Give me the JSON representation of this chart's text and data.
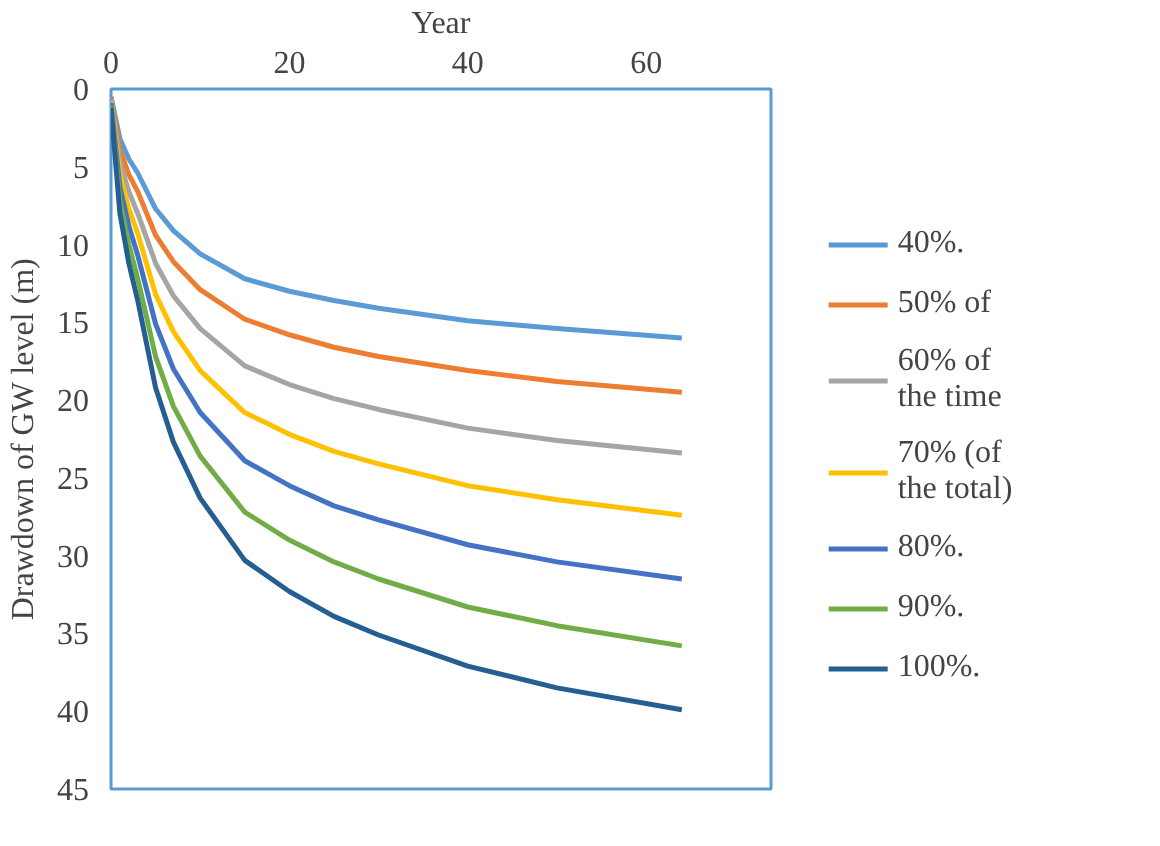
{
  "chart_data": {
    "type": "line",
    "xlabel": "Year",
    "ylabel": "Drawdown of GW level (m)",
    "x": [
      0,
      1,
      2,
      3,
      5,
      7,
      10,
      15,
      20,
      25,
      30,
      40,
      50,
      64
    ],
    "xlim": [
      0,
      74
    ],
    "xticks": [
      0,
      20,
      40,
      60
    ],
    "ylim": [
      45,
      0
    ],
    "yticks": [
      0,
      5,
      10,
      15,
      20,
      25,
      30,
      35,
      40,
      45
    ],
    "grid": false,
    "legend": "right",
    "marker": "none",
    "line_style": "solid",
    "series": [
      {
        "name": "40%.",
        "color": "#5b9bd5",
        "values": [
          0.5,
          3.2,
          4.5,
          5.4,
          7.7,
          9.1,
          10.6,
          12.2,
          13.0,
          13.6,
          14.1,
          14.9,
          15.4,
          16.0
        ]
      },
      {
        "name": "50% of",
        "color": "#ed7d31",
        "values": [
          0.6,
          3.9,
          5.5,
          6.6,
          9.4,
          11.1,
          12.9,
          14.8,
          15.8,
          16.6,
          17.2,
          18.1,
          18.8,
          19.5
        ]
      },
      {
        "name": "60% of\nthe time",
        "color": "#a5a5a5",
        "values": [
          0.7,
          4.7,
          6.6,
          8.0,
          11.2,
          13.3,
          15.4,
          17.8,
          19.0,
          19.9,
          20.6,
          21.8,
          22.6,
          23.4
        ]
      },
      {
        "name": "70% (of\nthe total)",
        "color": "#ffc000",
        "values": [
          0.8,
          5.5,
          7.7,
          9.3,
          13.2,
          15.6,
          18.1,
          20.8,
          22.2,
          23.3,
          24.1,
          25.5,
          26.4,
          27.4
        ]
      },
      {
        "name": "80%.",
        "color": "#4472c4",
        "values": [
          0.9,
          6.3,
          8.8,
          10.7,
          15.1,
          18.0,
          20.8,
          23.9,
          25.5,
          26.8,
          27.7,
          29.3,
          30.4,
          31.5
        ]
      },
      {
        "name": "90%.",
        "color": "#70ad47",
        "values": [
          1.1,
          7.2,
          10.0,
          12.2,
          17.2,
          20.4,
          23.6,
          27.2,
          29.0,
          30.4,
          31.5,
          33.3,
          34.5,
          35.8
        ]
      },
      {
        "name": "100%.",
        "color": "#255e91",
        "values": [
          1.2,
          8.0,
          11.2,
          13.6,
          19.2,
          22.7,
          26.3,
          30.3,
          32.3,
          33.9,
          35.1,
          37.1,
          38.5,
          39.9
        ]
      }
    ]
  }
}
